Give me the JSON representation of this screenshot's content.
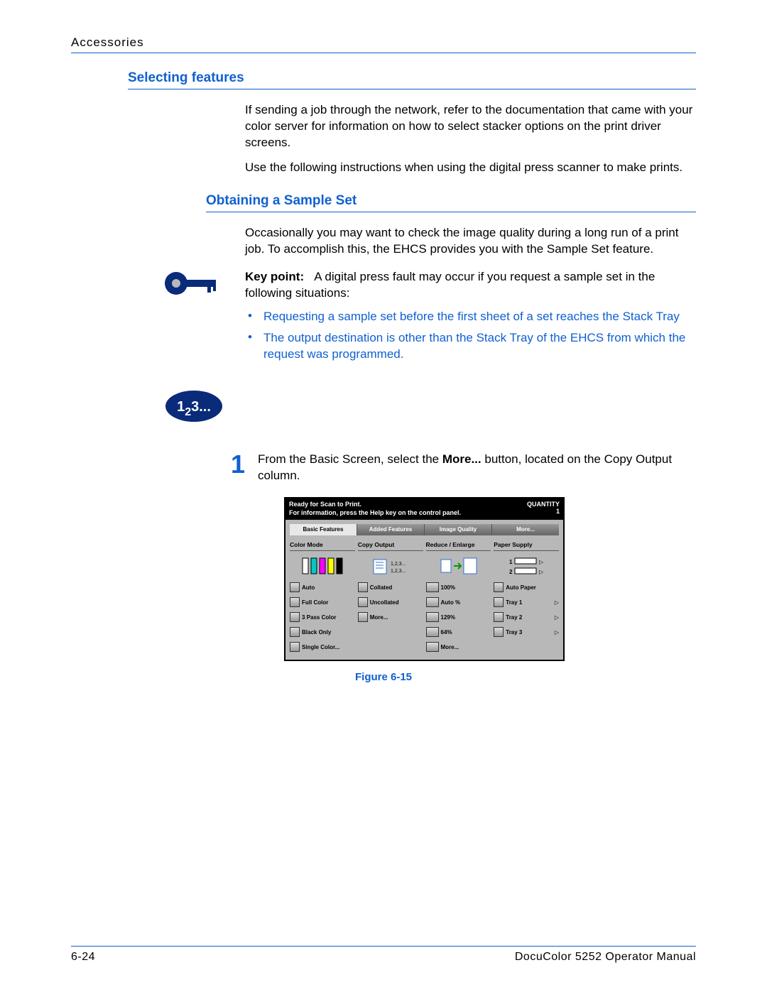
{
  "header": {
    "section": "Accessories"
  },
  "h1": "Selecting features",
  "p1": "If sending a job through the network, refer to the documentation that came with your color server for information on how to select stacker options on the print driver screens.",
  "p2": "Use the following instructions when using the digital press scanner to make prints.",
  "h2": "Obtaining a Sample Set",
  "p3": "Occasionally you may want to check the image quality during a long run of a print job. To accomplish this, the EHCS provides you with the Sample Set feature.",
  "keypoint": {
    "label": "Key point:",
    "text": "A digital press fault may occur if you request a sample set in the following situations:",
    "bullets": [
      "Requesting a sample set before the first sheet of a set reaches the Stack Tray",
      "The output destination is other than the Stack Tray of the EHCS from which the request was programmed."
    ]
  },
  "steps_badge": "123...",
  "step1": {
    "num": "1",
    "pre": "From the Basic Screen, select the ",
    "bold": "More...",
    "post": " button, located on the Copy Output column."
  },
  "screenshot": {
    "status1": "Ready for Scan to Print.",
    "status2": "For information, press the Help key on the control panel.",
    "qty_label": "QUANTITY",
    "qty_value": "1",
    "tabs": [
      "Basic\nFeatures",
      "Added\nFeatures",
      "Image\nQuality",
      "More..."
    ],
    "cols": [
      {
        "title": "Color Mode",
        "buttons": [
          "Auto",
          "Full Color",
          "3 Pass Color",
          "Black Only",
          "Single\nColor..."
        ]
      },
      {
        "title": "Copy Output",
        "illust_label": "1,2,3...\n1,2,3...",
        "buttons": [
          "Collated",
          "Uncollated",
          "More..."
        ]
      },
      {
        "title": "Reduce / Enlarge",
        "buttons": [
          "100%",
          "Auto %",
          "129%",
          "64%",
          "More..."
        ]
      },
      {
        "title": "Paper Supply",
        "buttons": [
          "Auto Paper",
          "Tray 1",
          "Tray 2",
          "Tray 3"
        ],
        "arrows": [
          false,
          true,
          true,
          true
        ]
      }
    ]
  },
  "figure_caption": "Figure 6-15",
  "footer": {
    "page": "6-24",
    "title": "DocuColor 5252 Operator Manual"
  },
  "colors": {
    "blue": "#1060d0",
    "navy": "#0a2a7a"
  }
}
